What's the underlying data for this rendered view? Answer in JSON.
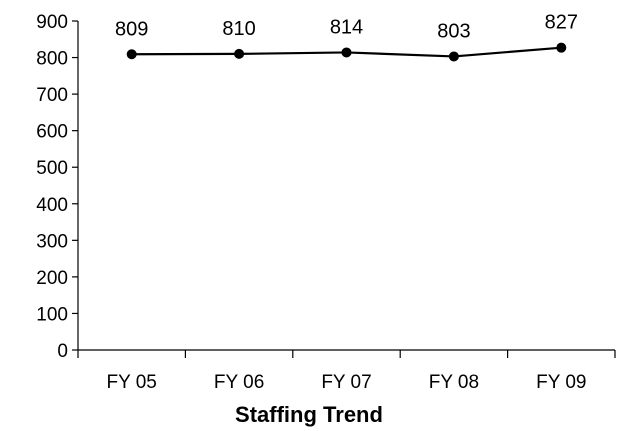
{
  "chart_data": {
    "type": "line",
    "title": "Staffing Trend",
    "xlabel": "",
    "ylabel": "",
    "categories": [
      "FY 05",
      "FY 06",
      "FY 07",
      "FY 08",
      "FY 09"
    ],
    "series": [
      {
        "values": [
          809,
          810,
          814,
          803,
          827
        ]
      }
    ],
    "ylim": [
      0,
      900
    ],
    "yticks": [
      0,
      100,
      200,
      300,
      400,
      500,
      600,
      700,
      800,
      900
    ],
    "grid": false,
    "legend": "none",
    "line_color": "#000000",
    "marker": "circle",
    "data_labels": true
  }
}
